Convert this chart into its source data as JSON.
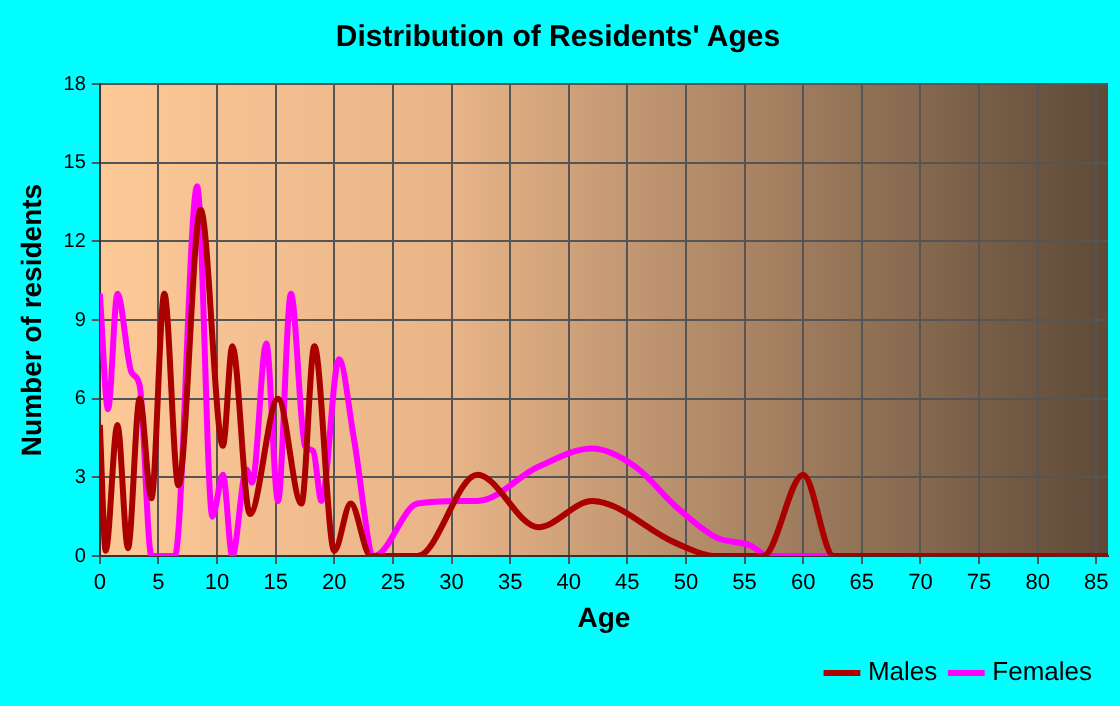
{
  "chart_data": {
    "type": "line",
    "title": "Distribution of Residents' Ages",
    "xlabel": "Age",
    "ylabel": "Number of residents",
    "xlim": [
      0,
      86
    ],
    "xticks": [
      0,
      5,
      10,
      15,
      20,
      25,
      30,
      35,
      40,
      45,
      50,
      55,
      60,
      65,
      70,
      75,
      80,
      85
    ],
    "ylim": [
      0,
      18
    ],
    "yticks": [
      0,
      3,
      6,
      9,
      12,
      15,
      18
    ],
    "grid": true,
    "legend": "bottom right",
    "marker": "none",
    "line_style": "solid",
    "series": [
      {
        "name": "Males",
        "color": "#aa0000",
        "x": [
          0,
          0.5,
          1.5,
          2.4,
          3.4,
          4.4,
          5.5,
          6.7,
          8.6,
          10.5,
          11.3,
          12.8,
          15.2,
          17.2,
          18.3,
          20,
          21.4,
          23.1,
          27.1,
          32.2,
          37.4,
          42,
          49.1,
          52.6,
          56.6,
          60,
          62.6,
          70,
          86
        ],
        "values": [
          5,
          0.2,
          5,
          0.3,
          6,
          2.2,
          10,
          2.7,
          13.2,
          4.2,
          8,
          1.6,
          6,
          2,
          8,
          0.2,
          2,
          0,
          0,
          3.1,
          1.1,
          2.1,
          0.5,
          0,
          0,
          3.1,
          0,
          0,
          0
        ]
      },
      {
        "name": "Females",
        "color": "#ff00ff",
        "x": [
          0,
          0.7,
          1.5,
          2.7,
          3.4,
          4.4,
          6.4,
          8.3,
          9.6,
          10.5,
          11.3,
          12.5,
          13,
          14.2,
          15.2,
          16.3,
          17.5,
          18.2,
          18.9,
          20.4,
          21.7,
          23.4,
          27.1,
          30.8,
          32.2,
          37.4,
          42,
          45.7,
          49.1,
          52.6,
          55.5,
          57,
          65
        ],
        "values": [
          10,
          5.6,
          10,
          7,
          6.5,
          0,
          0,
          14.1,
          1.5,
          3.1,
          0,
          3.3,
          2.8,
          8.1,
          2.1,
          10,
          4.2,
          4,
          2.1,
          7.5,
          4.4,
          0,
          2,
          2.1,
          2.1,
          3.4,
          4.1,
          3.4,
          1.9,
          0.7,
          0.4,
          0,
          0
        ]
      }
    ]
  }
}
